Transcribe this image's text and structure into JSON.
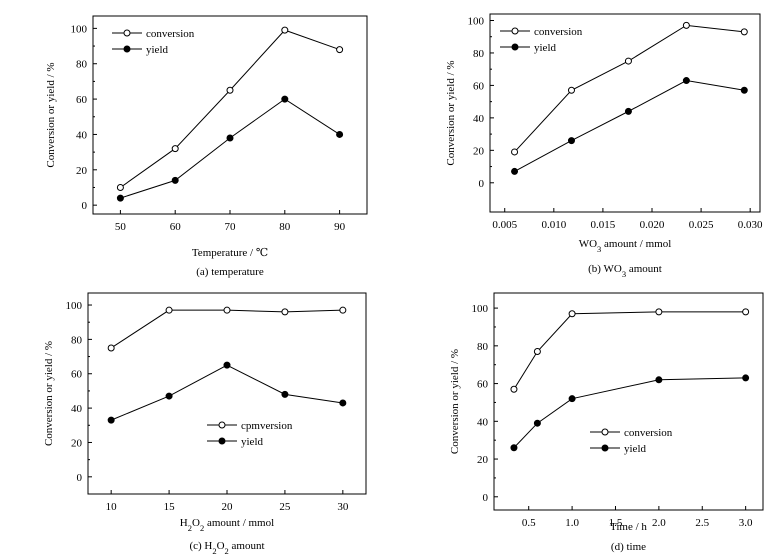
{
  "chart_data": [
    {
      "type": "line",
      "caption": "(a) temperature",
      "xlabel": "Temperature / ℃",
      "ylabel": "Conversion or yield / %",
      "x": [
        50,
        60,
        70,
        80,
        90
      ],
      "xlim": [
        45,
        95
      ],
      "ylim": [
        -5,
        107
      ],
      "xticks": [
        "50",
        "60",
        "70",
        "80",
        "90"
      ],
      "yticks": [
        "0",
        "20",
        "40",
        "60",
        "80",
        "100"
      ],
      "legend_position": "top-left",
      "series": [
        {
          "name": "conversion",
          "marker": "open-circle",
          "values": [
            10,
            32,
            65,
            99,
            88
          ]
        },
        {
          "name": "yield",
          "marker": "filled-circle",
          "values": [
            4,
            14,
            38,
            60,
            40
          ]
        }
      ]
    },
    {
      "type": "line",
      "caption_prefix": "(b) WO",
      "caption_sub": "3",
      "caption_suffix": " amount",
      "xlabel_prefix": "WO",
      "xlabel_sub": "3",
      "xlabel_suffix": " amount / mmol",
      "ylabel": "Conversion or yield / %",
      "x": [
        0.006,
        0.0118,
        0.0176,
        0.0235,
        0.0294
      ],
      "xlim": [
        0.0035,
        0.031
      ],
      "ylim": [
        -18,
        104
      ],
      "xticks_values": [
        0.005,
        0.01,
        0.015,
        0.02,
        0.025,
        0.03
      ],
      "xticks": [
        "0.005",
        "0.010",
        "0.015",
        "0.020",
        "0.025",
        "0.030"
      ],
      "yticks": [
        "0",
        "20",
        "40",
        "60",
        "80",
        "100"
      ],
      "legend_position": "top-left",
      "series": [
        {
          "name": "conversion",
          "marker": "open-circle",
          "values": [
            19,
            57,
            75,
            97,
            93
          ]
        },
        {
          "name": "yield",
          "marker": "filled-circle",
          "values": [
            7,
            26,
            44,
            63,
            57
          ]
        }
      ]
    },
    {
      "type": "line",
      "caption_prefix": "(c) H",
      "caption_sub": "2",
      "caption_mid": "O",
      "caption_sub2": "2",
      "caption_suffix": " amount",
      "xlabel_prefix": "H",
      "xlabel_sub": "2",
      "xlabel_mid": "O",
      "xlabel_sub2": "2",
      "xlabel_suffix": " amount / mmol",
      "ylabel": "Conversion or yield  / %",
      "x": [
        10,
        15,
        20,
        25,
        30
      ],
      "xlim": [
        8,
        32
      ],
      "ylim": [
        -10,
        107
      ],
      "xticks": [
        "10",
        "15",
        "20",
        "25",
        "30"
      ],
      "yticks": [
        "0",
        "20",
        "40",
        "60",
        "80",
        "100"
      ],
      "legend_position": "bottom-center",
      "series": [
        {
          "name": "cpmversion",
          "marker": "open-circle",
          "values": [
            75,
            97,
            97,
            96,
            97
          ]
        },
        {
          "name": "yield",
          "marker": "filled-circle",
          "values": [
            33,
            47,
            65,
            48,
            43
          ]
        }
      ]
    },
    {
      "type": "line",
      "caption": "(d) time",
      "xlabel": "Time / h",
      "ylabel": "Conversion or yield / %",
      "x": [
        0.33,
        0.6,
        1.0,
        2.0,
        3.0
      ],
      "xlim": [
        0.1,
        3.2
      ],
      "ylim": [
        -7,
        108
      ],
      "xticks_values": [
        0.5,
        1.0,
        1.5,
        2.0,
        2.5,
        3.0
      ],
      "xticks": [
        "0.5",
        "1.0",
        "1.5",
        "2.0",
        "2.5",
        "3.0"
      ],
      "yticks": [
        "0",
        "20",
        "40",
        "60",
        "80",
        "100"
      ],
      "legend_position": "bottom-center",
      "series": [
        {
          "name": "conversion",
          "marker": "open-circle",
          "values": [
            57,
            77,
            97,
            98,
            98
          ]
        },
        {
          "name": "yield",
          "marker": "filled-circle",
          "values": [
            26,
            39,
            52,
            62,
            63
          ]
        }
      ]
    }
  ]
}
